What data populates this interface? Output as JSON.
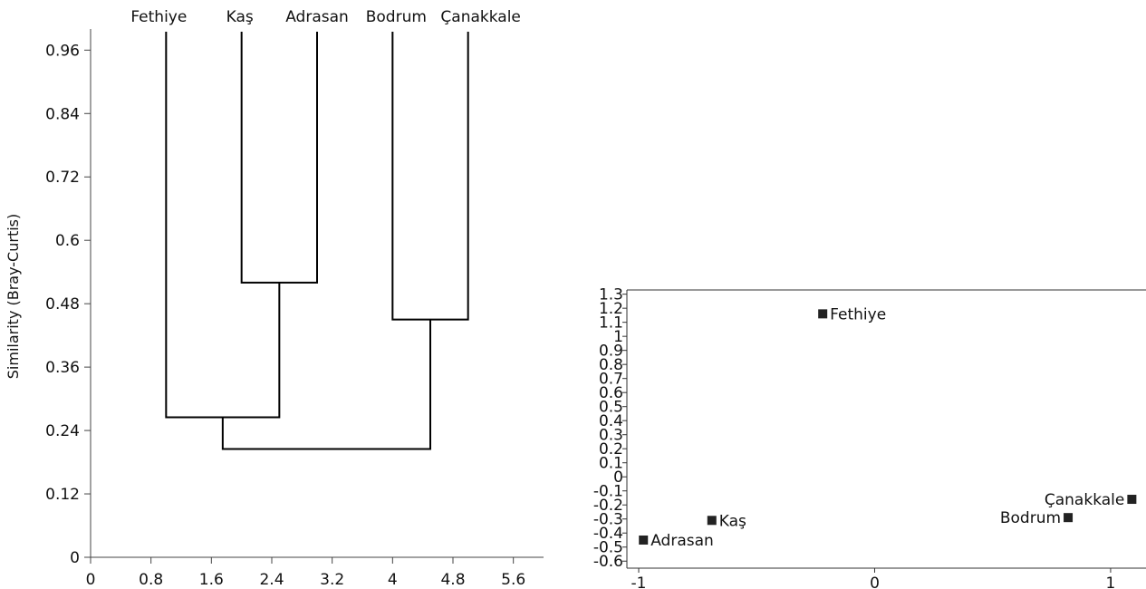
{
  "chart_data": [
    {
      "type": "dendrogram",
      "ylabel": "Similarity (Bray-Curtis)",
      "xlabel": "",
      "xlim": [
        0,
        6.0
      ],
      "ylim": [
        0,
        1.0
      ],
      "xticks": [
        "0",
        "0.8",
        "1.6",
        "2.4",
        "3.2",
        "4",
        "4.8",
        "5.6"
      ],
      "xtick_values": [
        0,
        0.8,
        1.6,
        2.4,
        3.2,
        4.0,
        4.8,
        5.6
      ],
      "yticks": [
        "0",
        "0.12",
        "0.24",
        "0.36",
        "0.48",
        "0.6",
        "0.72",
        "0.84",
        "0.96"
      ],
      "ytick_values": [
        0,
        0.12,
        0.24,
        0.36,
        0.48,
        0.6,
        0.72,
        0.84,
        0.96
      ],
      "leaves": [
        {
          "name": "Fethiye",
          "x": 1.0
        },
        {
          "name": "Kaş",
          "x": 2.0
        },
        {
          "name": "Adrasan",
          "x": 3.0
        },
        {
          "name": "Bodrum",
          "x": 4.0
        },
        {
          "name": "Çanakkale",
          "x": 5.0
        }
      ],
      "merges": [
        {
          "members": [
            "Kaş",
            "Adrasan"
          ],
          "left_x": 2.0,
          "right_x": 3.0,
          "left_from": 1.0,
          "right_from": 1.0,
          "similarity": 0.52,
          "x": 2.5
        },
        {
          "members": [
            "Bodrum",
            "Çanakkale"
          ],
          "left_x": 4.0,
          "right_x": 5.0,
          "left_from": 1.0,
          "right_from": 1.0,
          "similarity": 0.45,
          "x": 4.5
        },
        {
          "members": [
            "Fethiye",
            "Kaş",
            "Adrasan"
          ],
          "left_x": 1.0,
          "right_x": 2.5,
          "left_from": 1.0,
          "right_from": 0.52,
          "similarity": 0.265,
          "x": 1.75
        },
        {
          "members": [
            "Fethiye",
            "Kaş",
            "Adrasan",
            "Bodrum",
            "Çanakkale"
          ],
          "left_x": 1.75,
          "right_x": 4.5,
          "left_from": 0.265,
          "right_from": 0.45,
          "similarity": 0.205,
          "x": 3.125
        }
      ]
    },
    {
      "type": "scatter",
      "xlim": [
        -1.05,
        1.15
      ],
      "ylim": [
        -0.65,
        1.33
      ],
      "xticks": [
        "-1",
        "0",
        "1"
      ],
      "xtick_values": [
        -1,
        0,
        1
      ],
      "yticks": [
        "1.3",
        "1.2",
        "1.1",
        "1",
        "0.9",
        "0.8",
        "0.7",
        "0.6",
        "0.5",
        "0.4",
        "0.3",
        "0.2",
        "0.1",
        "0",
        "-0.1",
        "-0.2",
        "-0.3",
        "-0.4",
        "-0.5",
        "-0.6"
      ],
      "ytick_values": [
        1.3,
        1.2,
        1.1,
        1.0,
        0.9,
        0.8,
        0.7,
        0.6,
        0.5,
        0.4,
        0.3,
        0.2,
        0.1,
        0,
        -0.1,
        -0.2,
        -0.3,
        -0.4,
        -0.5,
        -0.6
      ],
      "points": [
        {
          "label": "Fethiye",
          "x": -0.22,
          "y": 1.16,
          "label_side": "right"
        },
        {
          "label": "Kaş",
          "x": -0.69,
          "y": -0.31,
          "label_side": "right"
        },
        {
          "label": "Adrasan",
          "x": -0.98,
          "y": -0.45,
          "label_side": "right"
        },
        {
          "label": "Bodrum",
          "x": 0.82,
          "y": -0.29,
          "label_side": "left"
        },
        {
          "label": "Çanakkale",
          "x": 1.09,
          "y": -0.16,
          "label_side": "left"
        }
      ],
      "marker": "square",
      "marker_color": "#222222"
    }
  ]
}
